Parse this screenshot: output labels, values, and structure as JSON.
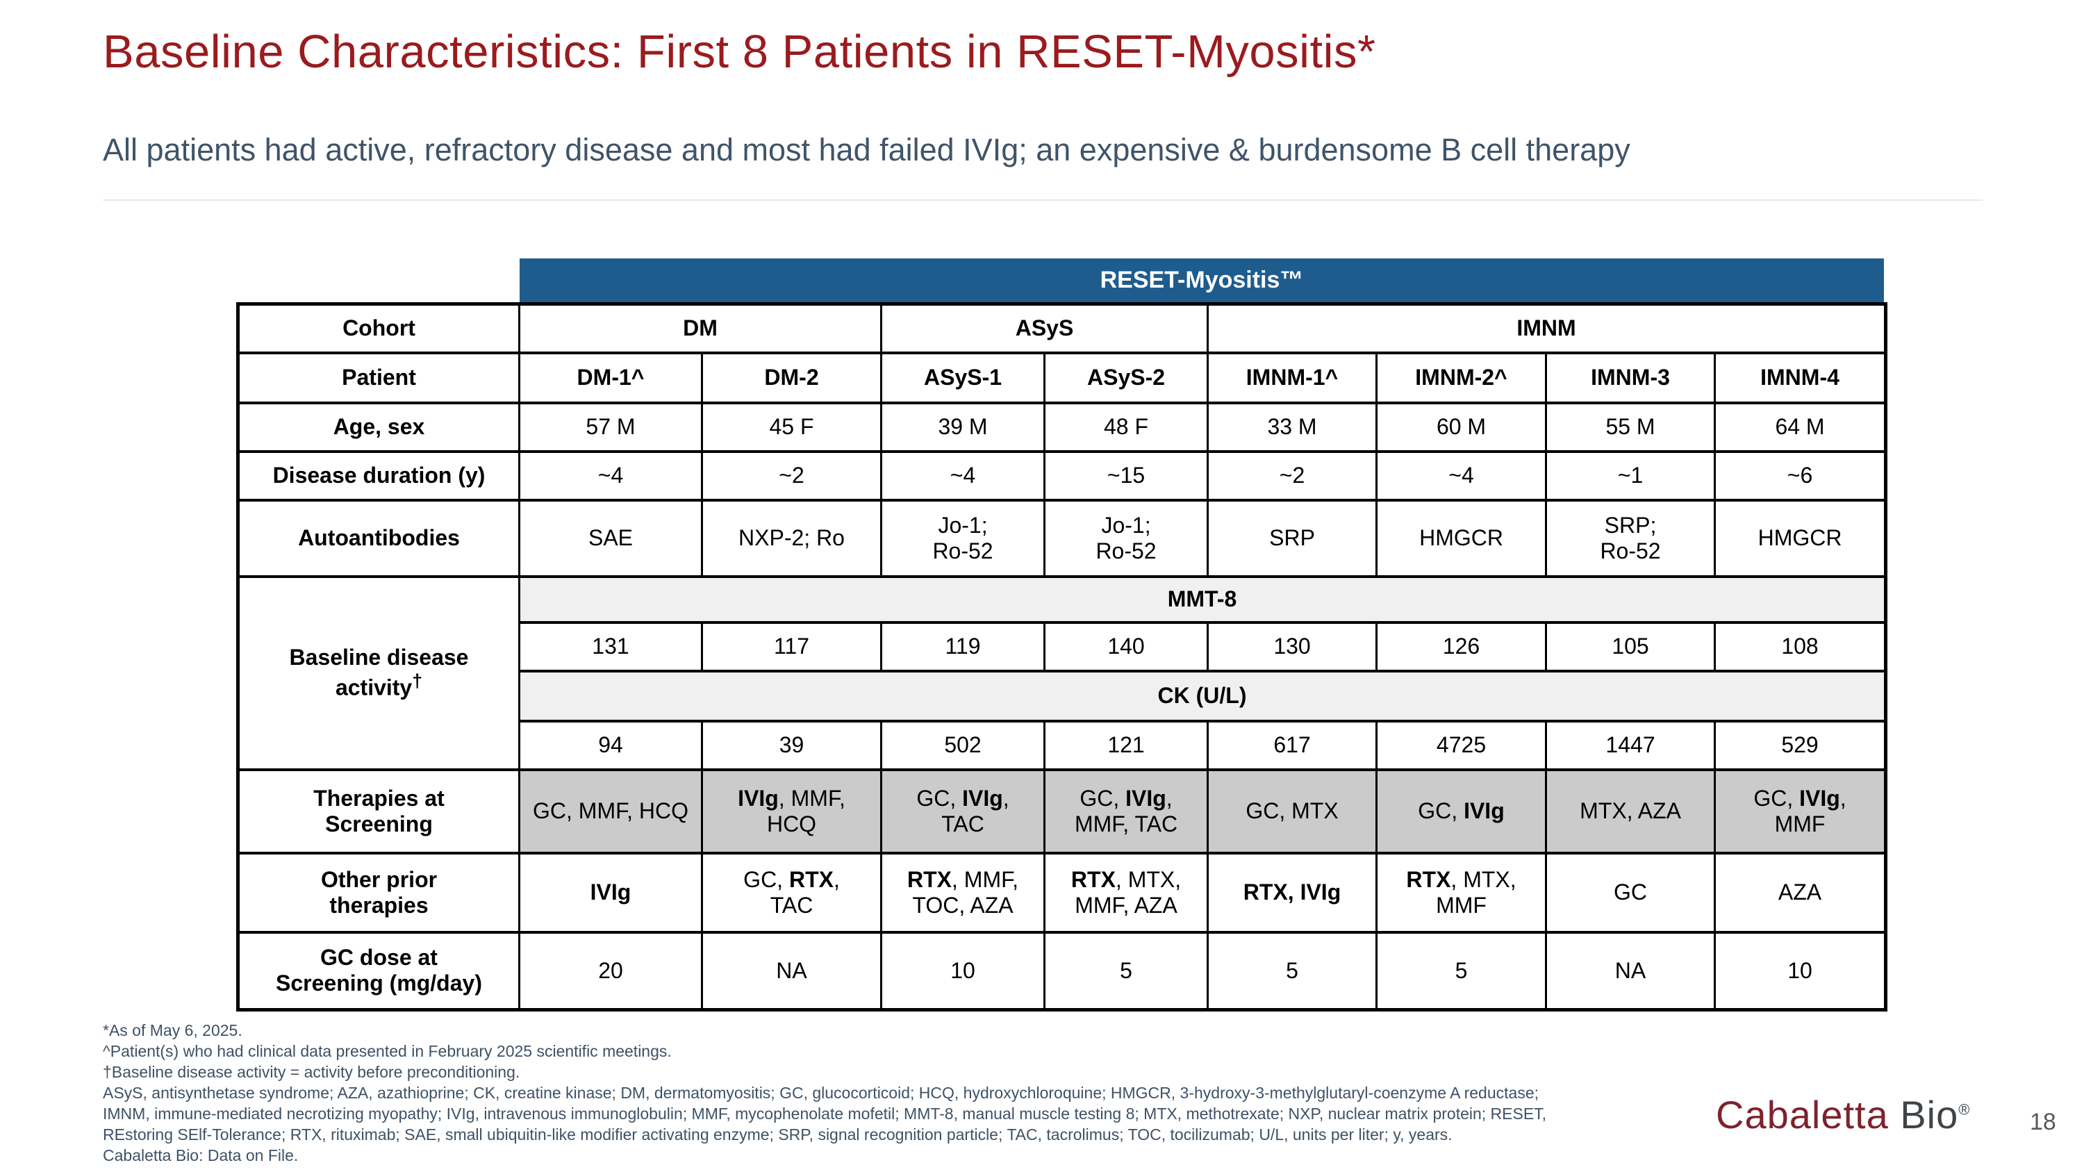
{
  "slide": {
    "title": "Baseline Characteristics: First 8 Patients in RESET-Myositis*",
    "subtitle": "All patients had active, refractory disease and most had failed IVIg; an expensive & burdensome B cell therapy",
    "page_number": "18"
  },
  "colors": {
    "title_red": "#9A1B1E",
    "subtitle_slate": "#3F5469",
    "banner_blue": "#1F5C8E",
    "band_gray": "#F0F0F0",
    "therapy_gray": "#CBCBCB",
    "logo_burgundy": "#7E222E",
    "logo_gray": "#3F4448"
  },
  "table": {
    "banner": "RESET-Myositis™",
    "labels": {
      "cohort": "Cohort",
      "patient": "Patient",
      "age_sex": "Age, sex",
      "disease_duration": "Disease duration (y)",
      "autoantibodies": "Autoantibodies",
      "baseline_activity": "Baseline disease\nactivity",
      "baseline_activity_sup": "†",
      "mmt8_band": "MMT-8",
      "ck_band": "CK (U/L)",
      "therapies_screening": "Therapies at\nScreening",
      "other_prior": "Other prior\ntherapies",
      "gc_dose": "GC dose at\nScreening (mg/day)"
    },
    "cohorts": [
      "DM",
      "ASyS",
      "IMNM"
    ],
    "patients": [
      "DM-1^",
      "DM-2",
      "ASyS-1",
      "ASyS-2",
      "IMNM-1^",
      "IMNM-2^",
      "IMNM-3",
      "IMNM-4"
    ],
    "age_sex": [
      "57 M",
      "45 F",
      "39 M",
      "48 F",
      "33 M",
      "60 M",
      "55 M",
      "64 M"
    ],
    "disease_duration": [
      "~4",
      "~2",
      "~4",
      "~15",
      "~2",
      "~4",
      "~1",
      "~6"
    ],
    "autoantibodies": [
      "SAE",
      "NXP-2; Ro",
      "Jo-1;\nRo-52",
      "Jo-1;\nRo-52",
      "SRP",
      "HMGCR",
      "SRP;\nRo-52",
      "HMGCR"
    ],
    "mmt8_values": [
      "131",
      "117",
      "119",
      "140",
      "130",
      "126",
      "105",
      "108"
    ],
    "ck_values": [
      "94",
      "39",
      "502",
      "121",
      "617",
      "4725",
      "1447",
      "529"
    ],
    "therapies_screening": [
      "GC, MMF, HCQ",
      "**IVIg**, MMF,\nHCQ",
      "GC, **IVIg**,\nTAC",
      "GC, **IVIg**,\nMMF, TAC",
      "GC, MTX",
      "GC, **IVIg**",
      "MTX, AZA",
      "GC, **IVIg**,\nMMF"
    ],
    "other_prior": [
      "**IVIg**",
      "GC, **RTX**,\nTAC",
      "**RTX**, MMF,\nTOC, AZA",
      "**RTX**, MTX,\nMMF, AZA",
      "**RTX, IVIg**",
      "**RTX**, MTX,\nMMF",
      "GC",
      "AZA"
    ],
    "gc_dose": [
      "20",
      "NA",
      "10",
      "5",
      "5",
      "5",
      "NA",
      "10"
    ]
  },
  "footnotes": [
    "*As of May 6, 2025.",
    "^Patient(s) who had clinical data presented in February 2025 scientific meetings.",
    "†Baseline disease activity = activity before preconditioning.",
    "ASyS, antisynthetase syndrome; AZA, azathioprine; CK, creatine kinase; DM, dermatomyositis; GC, glucocorticoid; HCQ, hydroxychloroquine; HMGCR, 3-hydroxy-3-methylglutaryl-coenzyme A reductase;",
    "IMNM, immune-mediated necrotizing myopathy; IVIg, intravenous immunoglobulin; MMF, mycophenolate mofetil; MMT-8, manual muscle testing 8; MTX, methotrexate; NXP, nuclear matrix protein; RESET,",
    "REstoring SElf-Tolerance; RTX, rituximab; SAE, small ubiquitin-like modifier activating enzyme; SRP, signal recognition particle; TAC, tacrolimus; TOC, tocilizumab; U/L, units per liter; y, years.",
    "Cabaletta Bio: Data on File."
  ],
  "logo": {
    "brand": "Cabaletta",
    "suffix": " Bio",
    "registered": "®"
  }
}
